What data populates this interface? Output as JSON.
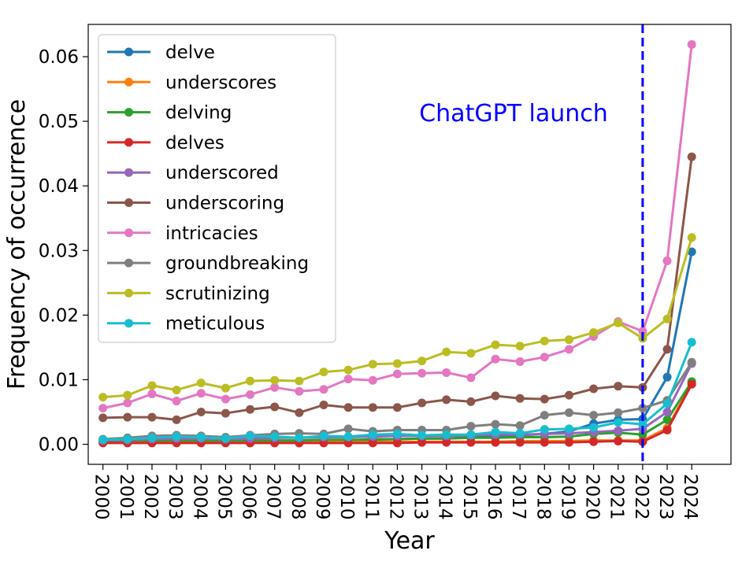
{
  "chart_data": {
    "type": "line",
    "title": "",
    "xlabel": "Year",
    "ylabel": "Frequency of occurrence",
    "x": [
      2000,
      2001,
      2002,
      2003,
      2004,
      2005,
      2006,
      2007,
      2008,
      2009,
      2010,
      2011,
      2012,
      2013,
      2014,
      2015,
      2016,
      2017,
      2018,
      2019,
      2020,
      2021,
      2022,
      2023,
      2024
    ],
    "x_tick_labels": [
      "2000",
      "2001",
      "2002",
      "2003",
      "2004",
      "2005",
      "2006",
      "2007",
      "2008",
      "2009",
      "2010",
      "2011",
      "2012",
      "2013",
      "2014",
      "2015",
      "2016",
      "2017",
      "2018",
      "2019",
      "2020",
      "2021",
      "2022",
      "2023",
      "2024"
    ],
    "y_tick_labels": [
      "0.00",
      "0.01",
      "0.02",
      "0.03",
      "0.04",
      "0.05",
      "0.06"
    ],
    "y_ticks": [
      0,
      0.01,
      0.02,
      0.03,
      0.04,
      0.05,
      0.06
    ],
    "xlim": [
      1999.4,
      2025.6
    ],
    "ylim": [
      -0.0031,
      0.065
    ],
    "grid": false,
    "legend_position": "top-left",
    "annotation": {
      "text": "ChatGPT launch",
      "x": 2022,
      "color": "#0000ff"
    },
    "series": [
      {
        "name": "delve",
        "color": "#1f77b4",
        "values": [
          0.0004,
          0.0004,
          0.0005,
          0.0005,
          0.0004,
          0.0004,
          0.0004,
          0.0004,
          0.0005,
          0.0005,
          0.0006,
          0.0008,
          0.0008,
          0.0009,
          0.0009,
          0.0011,
          0.0012,
          0.0014,
          0.0016,
          0.002,
          0.0032,
          0.0038,
          0.0039,
          0.0104,
          0.0298
        ]
      },
      {
        "name": "underscores",
        "color": "#ff7f0e",
        "values": [
          0.0003,
          0.0003,
          0.0003,
          0.0003,
          0.0003,
          0.0003,
          0.0003,
          0.0003,
          0.0003,
          0.0004,
          0.0004,
          0.0004,
          0.0004,
          0.0004,
          0.0004,
          0.0004,
          0.0004,
          0.0005,
          0.0005,
          0.0005,
          0.0006,
          0.0006,
          0.0006,
          0.0025,
          0.0095
        ]
      },
      {
        "name": "delving",
        "color": "#2ca02c",
        "values": [
          0.0005,
          0.0006,
          0.0006,
          0.0006,
          0.0006,
          0.0006,
          0.0006,
          0.0006,
          0.0006,
          0.0007,
          0.0007,
          0.0007,
          0.0008,
          0.0009,
          0.0009,
          0.001,
          0.001,
          0.0011,
          0.0011,
          0.0012,
          0.0016,
          0.0018,
          0.0015,
          0.0038,
          0.0097
        ]
      },
      {
        "name": "delves",
        "color": "#d62728",
        "values": [
          0.0002,
          0.0002,
          0.0002,
          0.0002,
          0.0002,
          0.0002,
          0.0002,
          0.0002,
          0.0002,
          0.0002,
          0.0002,
          0.0002,
          0.0002,
          0.0003,
          0.0003,
          0.0003,
          0.0003,
          0.0003,
          0.0003,
          0.0003,
          0.0004,
          0.0005,
          0.0004,
          0.0022,
          0.0093
        ]
      },
      {
        "name": "underscored",
        "color": "#9467bd",
        "values": [
          0.0006,
          0.0007,
          0.0008,
          0.0009,
          0.0009,
          0.0008,
          0.0009,
          0.001,
          0.001,
          0.0011,
          0.0011,
          0.0012,
          0.0013,
          0.0013,
          0.0013,
          0.0014,
          0.0015,
          0.0015,
          0.0016,
          0.0017,
          0.0019,
          0.0021,
          0.0024,
          0.005,
          0.0125
        ]
      },
      {
        "name": "underscoring",
        "color": "#8c564b",
        "values": [
          0.0041,
          0.0042,
          0.0042,
          0.0038,
          0.005,
          0.0048,
          0.0054,
          0.0058,
          0.0049,
          0.0061,
          0.0057,
          0.0057,
          0.0057,
          0.0064,
          0.0069,
          0.0066,
          0.0075,
          0.0071,
          0.007,
          0.0076,
          0.0086,
          0.009,
          0.0088,
          0.0147,
          0.0445
        ]
      },
      {
        "name": "intricacies",
        "color": "#e377c2",
        "values": [
          0.0056,
          0.0064,
          0.0078,
          0.0067,
          0.0079,
          0.007,
          0.0077,
          0.0088,
          0.0082,
          0.0085,
          0.0101,
          0.0099,
          0.0109,
          0.011,
          0.0111,
          0.0103,
          0.0132,
          0.0128,
          0.0135,
          0.0147,
          0.0167,
          0.019,
          0.0175,
          0.0284,
          0.0619
        ]
      },
      {
        "name": "groundbreaking",
        "color": "#7f7f7f",
        "values": [
          0.0008,
          0.001,
          0.0013,
          0.0014,
          0.0013,
          0.0011,
          0.0014,
          0.0016,
          0.0017,
          0.0016,
          0.0024,
          0.002,
          0.0022,
          0.0022,
          0.0022,
          0.0028,
          0.0031,
          0.0029,
          0.0045,
          0.0049,
          0.0045,
          0.0049,
          0.0056,
          0.0068,
          0.0127
        ]
      },
      {
        "name": "scrutinizing",
        "color": "#bcbd22",
        "values": [
          0.0073,
          0.0076,
          0.0091,
          0.0084,
          0.0095,
          0.0087,
          0.0098,
          0.0099,
          0.0098,
          0.0112,
          0.0115,
          0.0124,
          0.0125,
          0.0129,
          0.0143,
          0.0141,
          0.0154,
          0.0152,
          0.016,
          0.0162,
          0.0173,
          0.0188,
          0.0164,
          0.0194,
          0.032
        ]
      },
      {
        "name": "meticulous",
        "color": "#17becf",
        "values": [
          0.0007,
          0.0008,
          0.001,
          0.0012,
          0.0011,
          0.0009,
          0.0013,
          0.0012,
          0.001,
          0.0013,
          0.0012,
          0.0015,
          0.0016,
          0.0014,
          0.0015,
          0.0015,
          0.0019,
          0.0017,
          0.0023,
          0.0024,
          0.0026,
          0.0034,
          0.0031,
          0.0063,
          0.0158
        ]
      }
    ]
  }
}
